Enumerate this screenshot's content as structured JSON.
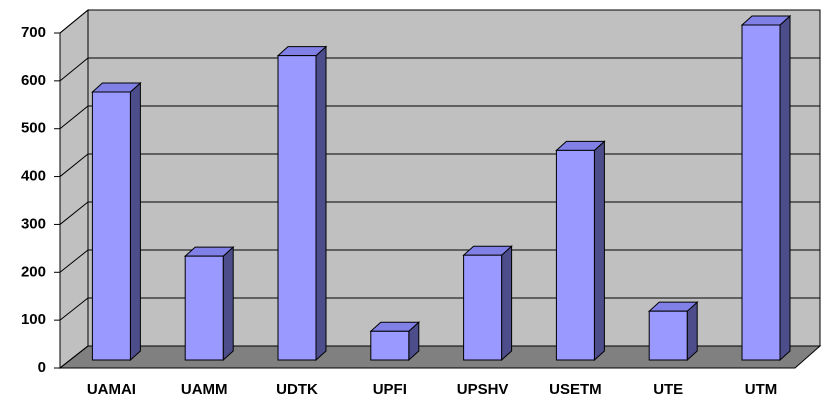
{
  "chart_data": {
    "type": "bar3d",
    "categories": [
      "UAMAI",
      "UAMM",
      "UDTK",
      "UPFI",
      "UPSHV",
      "USETM",
      "UTE",
      "UTM"
    ],
    "values": [
      560,
      217,
      636,
      60,
      219,
      438,
      102,
      700
    ],
    "color": "#9999ff",
    "ylim": [
      0,
      700
    ],
    "yticks": [
      0,
      100,
      200,
      300,
      400,
      500,
      600,
      700
    ],
    "grid": true
  }
}
